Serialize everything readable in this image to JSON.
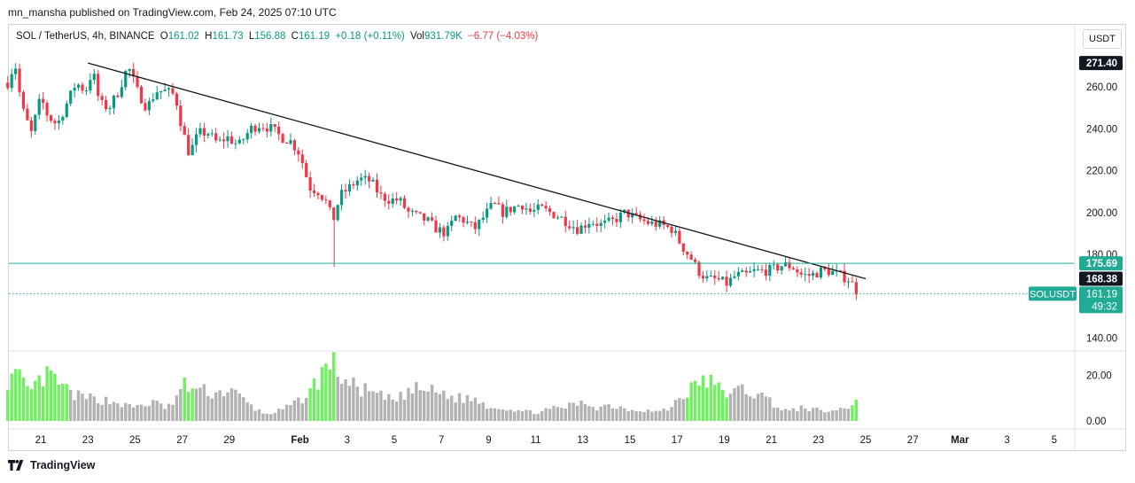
{
  "header": {
    "credit": "mn_mansha published on TradingView.com, Feb 24, 2025 07:10 UTC"
  },
  "legend": {
    "symbol": "SOL / TetherUS, 4h, BINANCE",
    "o_label": "O",
    "o_value": "161.02",
    "h_label": "H",
    "h_value": "161.73",
    "l_label": "L",
    "l_value": "156.88",
    "c_label": "C",
    "c_value": "161.19",
    "change": "+0.18 (+0.11%)",
    "vol_label": "Vol",
    "vol_value": "931.79K",
    "vol_change": "−6.77 (−4.03%)"
  },
  "currency_button": "USDT",
  "footer": {
    "brand": "TradingView"
  },
  "colors": {
    "up": "#089981",
    "down": "#f23645",
    "vol_up": "#6ef05f",
    "vol_down": "#b2b2b2",
    "support": "#22ab94"
  },
  "price_labels": [
    {
      "text": "271.40",
      "value": 271.4,
      "style": "dark"
    },
    {
      "text": "175.69",
      "value": 175.69,
      "style": "teal"
    },
    {
      "text": "168.38",
      "value": 168.38,
      "style": "dark"
    }
  ],
  "current_price": {
    "symbol": "SOLUSDT",
    "price": "161.19",
    "countdown": "49:32",
    "value": 161.19
  },
  "chart_data": {
    "type": "candlestick",
    "interval": "4h",
    "y_ticks": [
      {
        "label": "260.00",
        "value": 260
      },
      {
        "label": "240.00",
        "value": 240
      },
      {
        "label": "220.00",
        "value": 220
      },
      {
        "label": "200.00",
        "value": 200
      },
      {
        "label": "180.00",
        "value": 180
      },
      {
        "label": "140.00",
        "value": 140
      }
    ],
    "volume_ticks": [
      {
        "label": "20.00",
        "value": 20
      },
      {
        "label": "0.00",
        "value": 0
      }
    ],
    "x_ticks": [
      {
        "label": "21",
        "day": 21
      },
      {
        "label": "23",
        "day": 23
      },
      {
        "label": "25",
        "day": 25
      },
      {
        "label": "27",
        "day": 27
      },
      {
        "label": "29",
        "day": 29
      },
      {
        "label": "Feb",
        "day": 32,
        "bold": true
      },
      {
        "label": "3",
        "day": 34
      },
      {
        "label": "5",
        "day": 36
      },
      {
        "label": "7",
        "day": 38
      },
      {
        "label": "9",
        "day": 40
      },
      {
        "label": "11",
        "day": 42
      },
      {
        "label": "13",
        "day": 44
      },
      {
        "label": "15",
        "day": 46
      },
      {
        "label": "17",
        "day": 48
      },
      {
        "label": "19",
        "day": 50
      },
      {
        "label": "21",
        "day": 52
      },
      {
        "label": "23",
        "day": 54
      },
      {
        "label": "25",
        "day": 56
      },
      {
        "label": "27",
        "day": 58
      },
      {
        "label": "Mar",
        "day": 60,
        "bold": true
      },
      {
        "label": "3",
        "day": 62
      },
      {
        "label": "5",
        "day": 64
      }
    ],
    "trendline": {
      "from": {
        "day": 23,
        "price": 271.4
      },
      "to": {
        "day": 56,
        "price": 168.38
      }
    },
    "support": 175.69,
    "anchors": [
      [
        19.6,
        262
      ],
      [
        19.9,
        272
      ],
      [
        20.2,
        250
      ],
      [
        20.6,
        238
      ],
      [
        21.0,
        255
      ],
      [
        21.3,
        246
      ],
      [
        21.7,
        242
      ],
      [
        22.1,
        252
      ],
      [
        22.5,
        262
      ],
      [
        22.9,
        258
      ],
      [
        23.2,
        268
      ],
      [
        23.5,
        252
      ],
      [
        23.9,
        250
      ],
      [
        24.3,
        258
      ],
      [
        24.7,
        270
      ],
      [
        25.1,
        258
      ],
      [
        25.5,
        250
      ],
      [
        25.9,
        258
      ],
      [
        26.3,
        258
      ],
      [
        26.7,
        256
      ],
      [
        27.0,
        240
      ],
      [
        27.3,
        228
      ],
      [
        27.7,
        238
      ],
      [
        28.1,
        238
      ],
      [
        28.5,
        233
      ],
      [
        28.9,
        236
      ],
      [
        29.4,
        232
      ],
      [
        29.9,
        240
      ],
      [
        30.3,
        242
      ],
      [
        30.8,
        240
      ],
      [
        31.2,
        236
      ],
      [
        31.6,
        234
      ],
      [
        32.0,
        228
      ],
      [
        32.4,
        212
      ],
      [
        32.8,
        210
      ],
      [
        33.1,
        205
      ],
      [
        33.4,
        196
      ],
      [
        33.7,
        208
      ],
      [
        34.1,
        212
      ],
      [
        34.5,
        216
      ],
      [
        35.0,
        215
      ],
      [
        35.4,
        208
      ],
      [
        35.8,
        206
      ],
      [
        36.2,
        206
      ],
      [
        36.6,
        200
      ],
      [
        37.0,
        198
      ],
      [
        37.4,
        196
      ],
      [
        37.8,
        192
      ],
      [
        38.2,
        190
      ],
      [
        38.6,
        198
      ],
      [
        39.0,
        196
      ],
      [
        39.4,
        192
      ],
      [
        39.8,
        198
      ],
      [
        40.2,
        204
      ],
      [
        40.6,
        200
      ],
      [
        41.0,
        202
      ],
      [
        41.4,
        204
      ],
      [
        41.8,
        200
      ],
      [
        42.2,
        202
      ],
      [
        42.6,
        200
      ],
      [
        43.0,
        198
      ],
      [
        43.4,
        195
      ],
      [
        43.8,
        192
      ],
      [
        44.3,
        196
      ],
      [
        44.8,
        194
      ],
      [
        45.3,
        196
      ],
      [
        45.8,
        200
      ],
      [
        46.3,
        197
      ],
      [
        46.8,
        195
      ],
      [
        47.3,
        194
      ],
      [
        47.8,
        192
      ],
      [
        48.2,
        184
      ],
      [
        48.6,
        178
      ],
      [
        48.9,
        172
      ],
      [
        49.3,
        168
      ],
      [
        49.7,
        168
      ],
      [
        50.1,
        166
      ],
      [
        50.5,
        170
      ],
      [
        50.9,
        170
      ],
      [
        51.3,
        172
      ],
      [
        51.7,
        172
      ],
      [
        52.1,
        173
      ],
      [
        52.5,
        175
      ],
      [
        52.9,
        174
      ],
      [
        53.3,
        170
      ],
      [
        53.7,
        170
      ],
      [
        54.1,
        172
      ],
      [
        54.5,
        172
      ],
      [
        54.9,
        170
      ],
      [
        55.3,
        168
      ],
      [
        55.7,
        161
      ]
    ],
    "volume_anchors": [
      [
        19.6,
        18
      ],
      [
        20.0,
        20
      ],
      [
        20.5,
        12
      ],
      [
        21.0,
        18
      ],
      [
        21.4,
        20
      ],
      [
        21.8,
        16
      ],
      [
        22.3,
        12
      ],
      [
        22.8,
        10
      ],
      [
        23.3,
        10
      ],
      [
        23.8,
        9
      ],
      [
        24.3,
        8
      ],
      [
        24.8,
        6
      ],
      [
        25.3,
        7
      ],
      [
        25.8,
        8
      ],
      [
        26.3,
        6
      ],
      [
        26.7,
        8
      ],
      [
        27.0,
        16
      ],
      [
        27.5,
        14
      ],
      [
        28.0,
        13
      ],
      [
        28.5,
        12
      ],
      [
        29.0,
        14
      ],
      [
        29.5,
        10
      ],
      [
        30.0,
        6
      ],
      [
        30.5,
        3
      ],
      [
        31.0,
        4
      ],
      [
        31.5,
        6
      ],
      [
        32.0,
        9
      ],
      [
        32.5,
        14
      ],
      [
        33.0,
        22
      ],
      [
        33.3,
        27
      ],
      [
        33.7,
        20
      ],
      [
        34.1,
        16
      ],
      [
        34.6,
        14
      ],
      [
        35.1,
        12
      ],
      [
        35.6,
        10
      ],
      [
        36.1,
        9
      ],
      [
        36.6,
        13
      ],
      [
        37.1,
        14
      ],
      [
        37.6,
        13
      ],
      [
        38.1,
        12
      ],
      [
        38.6,
        10
      ],
      [
        39.1,
        10
      ],
      [
        39.6,
        9
      ],
      [
        40.1,
        6
      ],
      [
        40.6,
        6
      ],
      [
        41.1,
        5
      ],
      [
        41.6,
        4
      ],
      [
        42.1,
        4
      ],
      [
        42.6,
        5
      ],
      [
        43.1,
        6
      ],
      [
        43.6,
        7
      ],
      [
        44.1,
        8
      ],
      [
        44.6,
        6
      ],
      [
        45.1,
        7
      ],
      [
        45.6,
        6
      ],
      [
        46.1,
        5
      ],
      [
        46.6,
        5
      ],
      [
        47.1,
        4
      ],
      [
        47.6,
        5
      ],
      [
        48.1,
        10
      ],
      [
        48.6,
        14
      ],
      [
        49.0,
        18
      ],
      [
        49.4,
        17
      ],
      [
        49.8,
        14
      ],
      [
        50.3,
        12
      ],
      [
        50.8,
        14
      ],
      [
        51.3,
        12
      ],
      [
        51.8,
        10
      ],
      [
        52.3,
        6
      ],
      [
        52.8,
        4
      ],
      [
        53.3,
        6
      ],
      [
        53.8,
        5
      ],
      [
        54.3,
        4
      ],
      [
        54.8,
        5
      ],
      [
        55.3,
        6
      ],
      [
        55.7,
        11
      ]
    ]
  }
}
